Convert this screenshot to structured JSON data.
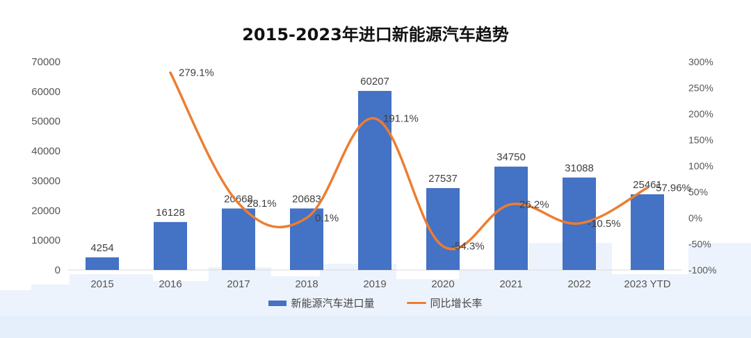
{
  "chart_data": {
    "type": "bar",
    "title": "2015-2023年进口新能源汽车趋势",
    "categories": [
      "2015",
      "2016",
      "2017",
      "2018",
      "2019",
      "2020",
      "2021",
      "2022",
      "2023 YTD"
    ],
    "series": [
      {
        "name": "新能源汽车进口量",
        "kind": "bar",
        "axis": "left",
        "values": [
          4254,
          16128,
          20668,
          20683,
          60207,
          27537,
          34750,
          31088,
          25461
        ],
        "labels": [
          "4254",
          "16128",
          "20668",
          "20683",
          "60207",
          "27537",
          "34750",
          "31088",
          "25461"
        ]
      },
      {
        "name": "同比增长率",
        "kind": "line",
        "axis": "right",
        "values": [
          null,
          279.1,
          28.1,
          0.1,
          191.1,
          -54.3,
          26.2,
          -10.5,
          57.96
        ],
        "labels": [
          "",
          "279.1%",
          "28.1%",
          "0.1%",
          "191.1%",
          "-54.3%",
          "26.2%",
          "-10.5%",
          "57.96%"
        ]
      }
    ],
    "y_left": {
      "range": [
        0,
        70000
      ],
      "ticks": [
        "0",
        "10000",
        "20000",
        "30000",
        "40000",
        "50000",
        "60000",
        "70000"
      ]
    },
    "y_right": {
      "range": [
        -100,
        300
      ],
      "ticks": [
        "-100%",
        "-50%",
        "0%",
        "50%",
        "100%",
        "150%",
        "200%",
        "250%",
        "300%"
      ]
    },
    "grid": false,
    "legend_position": "bottom",
    "colors": {
      "bar": "#4472c4",
      "line": "#ed7d31",
      "background_blocks": "#dfeafa"
    }
  }
}
